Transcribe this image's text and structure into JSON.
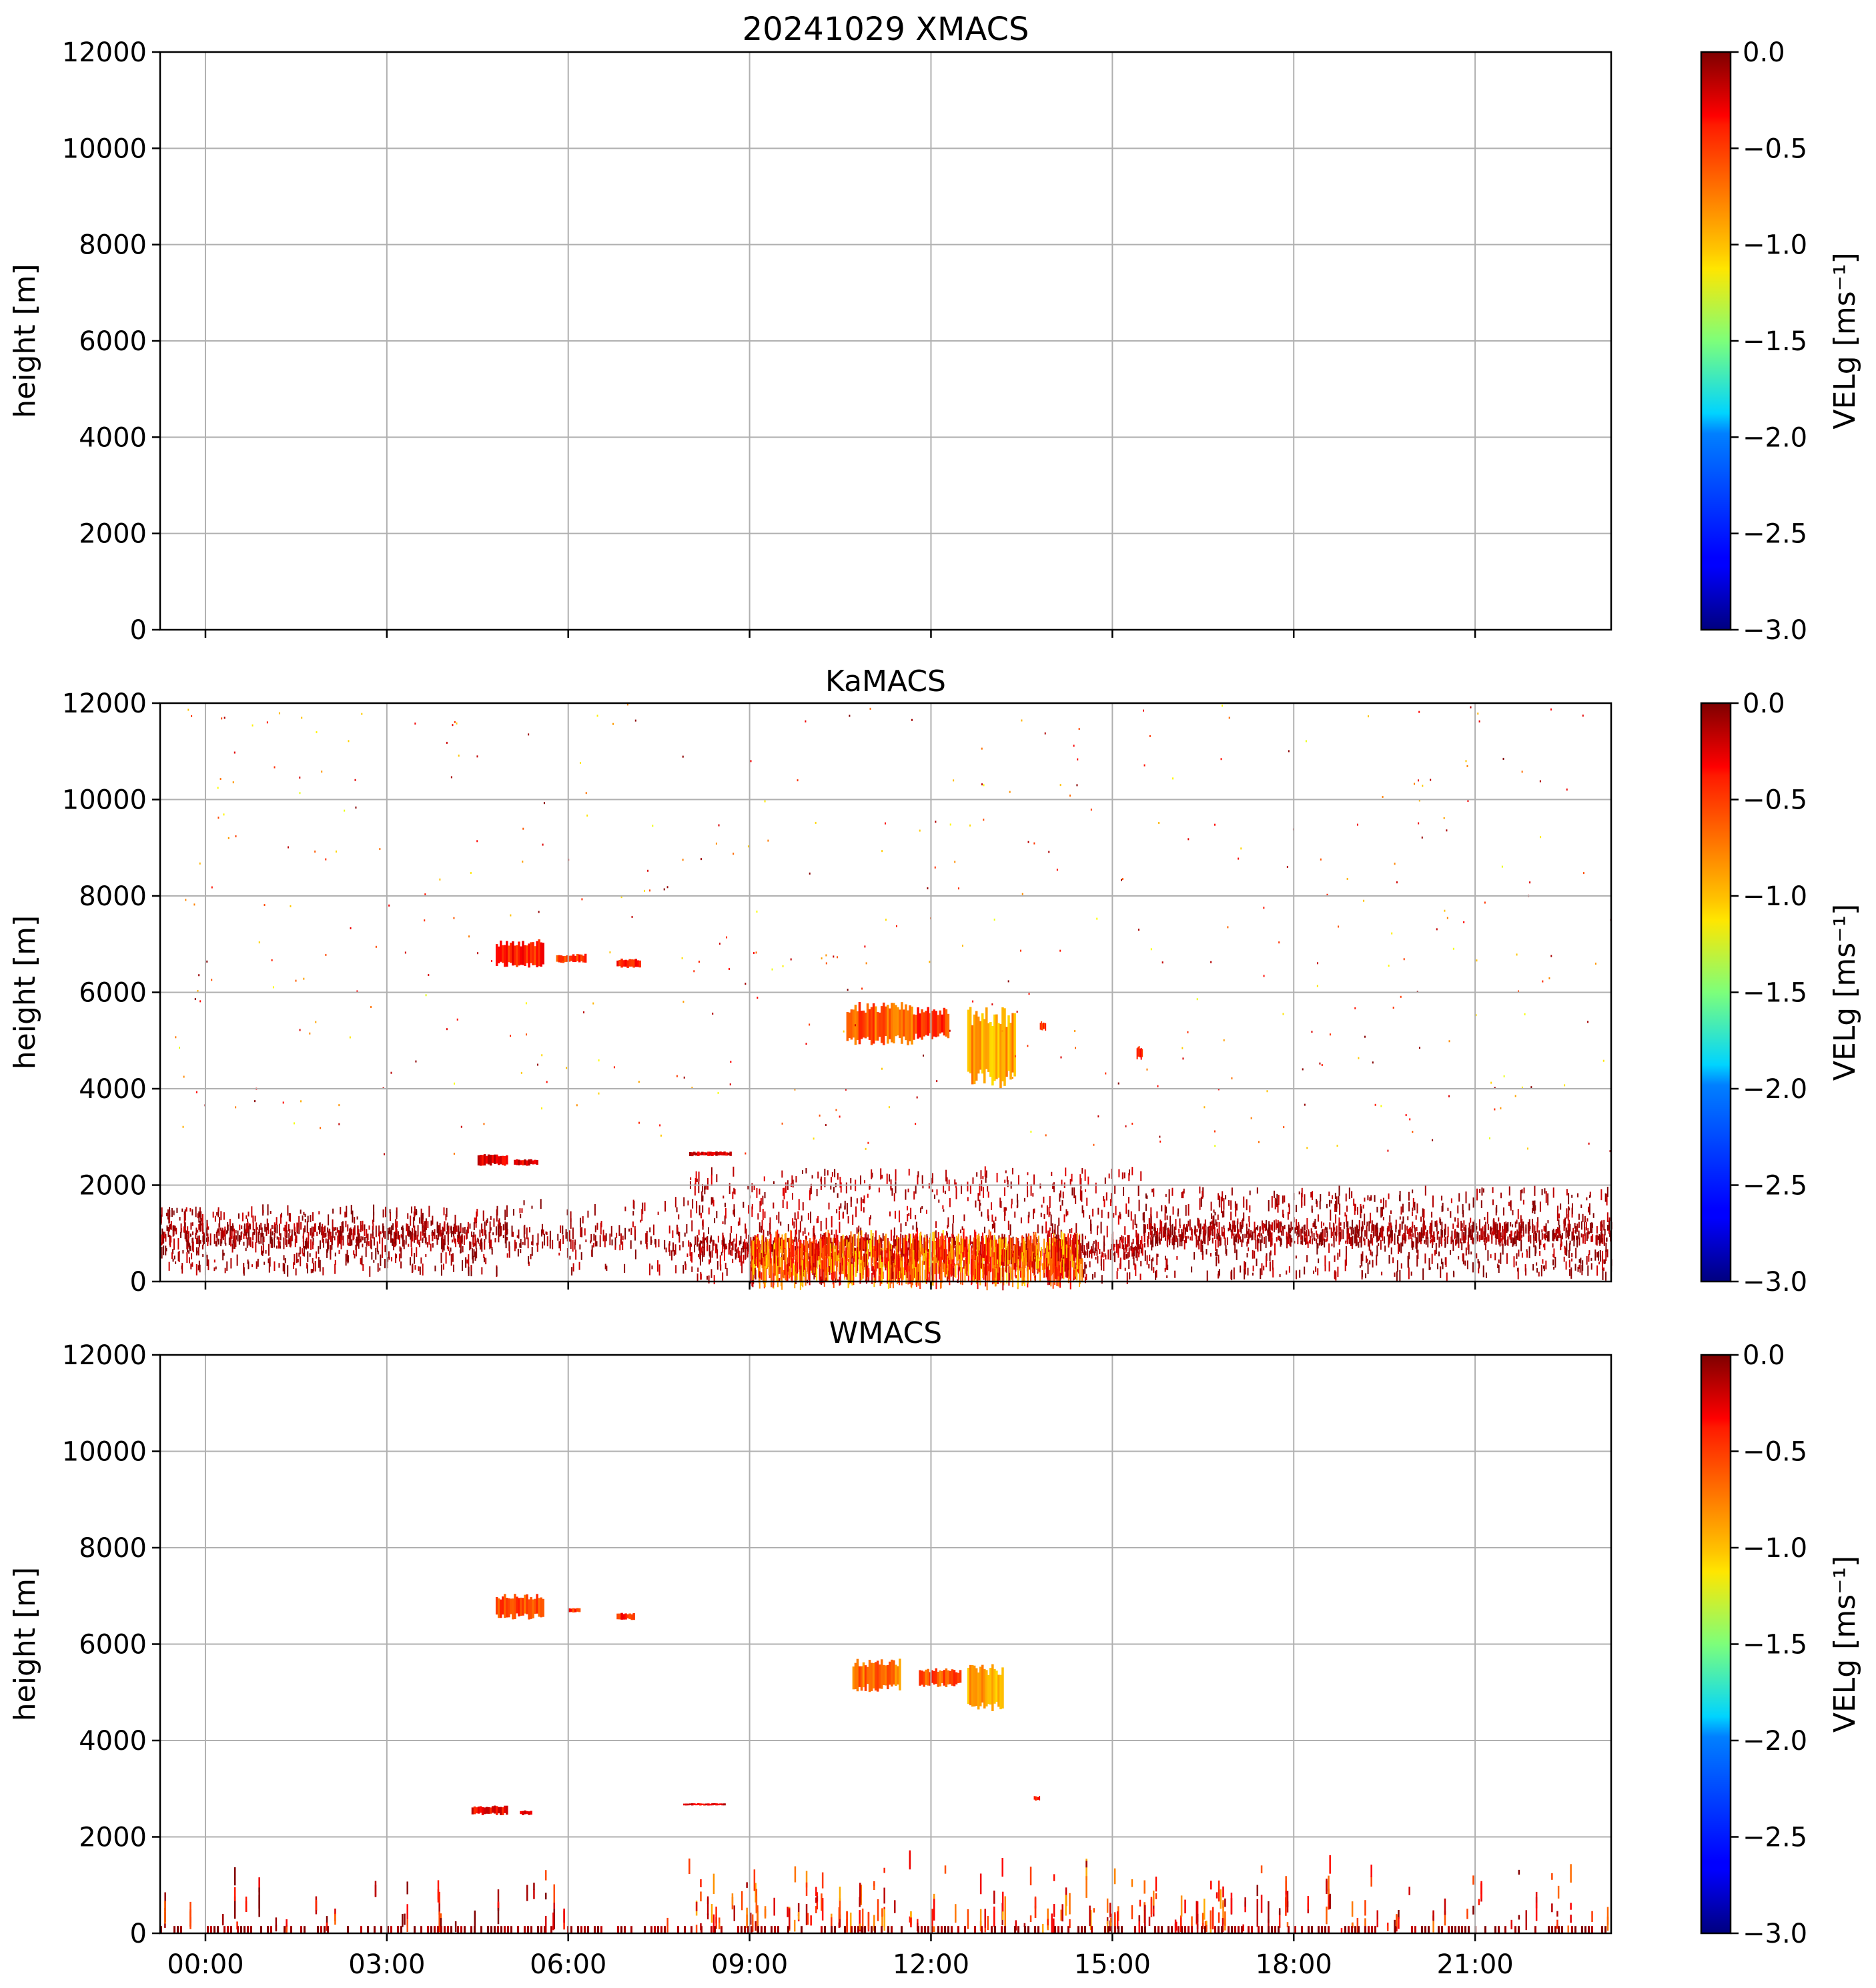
{
  "chart_data": [
    {
      "type": "heatmap",
      "title": "20241029 XMACS",
      "ylabel": "height [m]",
      "ylim": [
        0,
        12000
      ],
      "yticks": [
        "0",
        "2000",
        "4000",
        "6000",
        "8000",
        "10000",
        "12000"
      ],
      "xlim": [
        -0.75,
        23.25
      ],
      "xticks": [
        "00:00",
        "03:00",
        "06:00",
        "09:00",
        "12:00",
        "15:00",
        "18:00",
        "21:00"
      ],
      "show_xtick_labels": false,
      "grid": true,
      "colorbar": {
        "label": "VELg [ms⁻¹]",
        "range": [
          -3.0,
          0.0
        ],
        "ticks": [
          "0.0",
          "−0.5",
          "−1.0",
          "−1.5",
          "−2.0",
          "−2.5",
          "−3.0"
        ],
        "colormap": "jet"
      },
      "features": []
    },
    {
      "type": "heatmap",
      "title": "KaMACS",
      "ylabel": "height [m]",
      "ylim": [
        0,
        12000
      ],
      "yticks": [
        "0",
        "2000",
        "4000",
        "6000",
        "8000",
        "10000",
        "12000"
      ],
      "xlim": [
        -0.75,
        23.25
      ],
      "xticks": [
        "00:00",
        "03:00",
        "06:00",
        "09:00",
        "12:00",
        "15:00",
        "18:00",
        "21:00"
      ],
      "show_xtick_labels": false,
      "grid": true,
      "colorbar": {
        "label": "VELg [ms⁻¹]",
        "range": [
          -3.0,
          0.0
        ],
        "ticks": [
          "0.0",
          "−0.5",
          "−1.0",
          "−1.5",
          "−2.0",
          "−2.5",
          "−3.0"
        ],
        "colormap": "jet"
      },
      "features": [
        {
          "kind": "blob",
          "t0": 4.8,
          "t1": 5.6,
          "h0": 6500,
          "h1": 7100,
          "vel": -0.45
        },
        {
          "kind": "blob",
          "t0": 5.8,
          "t1": 6.3,
          "h0": 6600,
          "h1": 6800,
          "vel": -0.5
        },
        {
          "kind": "blob",
          "t0": 6.8,
          "t1": 7.2,
          "h0": 6500,
          "h1": 6700,
          "vel": -0.5
        },
        {
          "kind": "blob",
          "t0": 4.5,
          "t1": 5.0,
          "h0": 2400,
          "h1": 2650,
          "vel": -0.3
        },
        {
          "kind": "blob",
          "t0": 5.1,
          "t1": 5.5,
          "h0": 2400,
          "h1": 2550,
          "vel": -0.3
        },
        {
          "kind": "blob",
          "t0": 8.0,
          "t1": 8.7,
          "h0": 2600,
          "h1": 2700,
          "vel": -0.25
        },
        {
          "kind": "blob",
          "t0": 10.6,
          "t1": 11.7,
          "h0": 4900,
          "h1": 5800,
          "vel": -0.65
        },
        {
          "kind": "blob",
          "t0": 11.7,
          "t1": 12.3,
          "h0": 5000,
          "h1": 5700,
          "vel": -0.55
        },
        {
          "kind": "blob",
          "t0": 12.6,
          "t1": 13.4,
          "h0": 4000,
          "h1": 5700,
          "vel": -0.85
        },
        {
          "kind": "blob",
          "t0": 13.8,
          "t1": 13.9,
          "h0": 5200,
          "h1": 5400,
          "vel": -0.5
        },
        {
          "kind": "blob",
          "t0": 15.4,
          "t1": 15.5,
          "h0": 4600,
          "h1": 4900,
          "vel": -0.5
        },
        {
          "kind": "band",
          "t0": -0.75,
          "t1": 5.0,
          "h0": 200,
          "h1": 1500,
          "center": 950,
          "density": 0.8,
          "vel": -0.1
        },
        {
          "kind": "band",
          "t0": 5.0,
          "t1": 8.0,
          "h0": 200,
          "h1": 1700,
          "center": 900,
          "density": 0.3,
          "vel": -0.1
        },
        {
          "kind": "band",
          "t0": 8.0,
          "t1": 15.5,
          "h0": 0,
          "h1": 2300,
          "center": 700,
          "density": 0.9,
          "vel": -0.15
        },
        {
          "kind": "band",
          "t0": 15.5,
          "t1": 23.25,
          "h0": 100,
          "h1": 1900,
          "center": 1000,
          "density": 0.9,
          "vel": -0.1
        },
        {
          "kind": "core",
          "t0": 9.0,
          "t1": 14.5,
          "h0": 100,
          "h1": 800,
          "vel": -0.6
        },
        {
          "kind": "speckle",
          "t0": -0.75,
          "t1": 23.25,
          "h0": 2500,
          "h1": 12000,
          "count": 420
        }
      ]
    },
    {
      "type": "heatmap",
      "title": "WMACS",
      "ylabel": "height [m]",
      "ylim": [
        0,
        12000
      ],
      "yticks": [
        "0",
        "2000",
        "4000",
        "6000",
        "8000",
        "10000",
        "12000"
      ],
      "xlim": [
        -0.75,
        23.25
      ],
      "xticks": [
        "00:00",
        "03:00",
        "06:00",
        "09:00",
        "12:00",
        "15:00",
        "18:00",
        "21:00"
      ],
      "show_xtick_labels": true,
      "grid": true,
      "colorbar": {
        "label": "VELg [ms⁻¹]",
        "range": [
          -3.0,
          0.0
        ],
        "ticks": [
          "0.0",
          "−0.5",
          "−1.0",
          "−1.5",
          "−2.0",
          "−2.5",
          "−3.0"
        ],
        "colormap": "jet"
      },
      "features": [
        {
          "kind": "blob",
          "t0": 4.8,
          "t1": 5.6,
          "h0": 6500,
          "h1": 7050,
          "vel": -0.6
        },
        {
          "kind": "blob",
          "t0": 6.0,
          "t1": 6.2,
          "h0": 6650,
          "h1": 6750,
          "vel": -0.5
        },
        {
          "kind": "blob",
          "t0": 6.8,
          "t1": 7.1,
          "h0": 6500,
          "h1": 6650,
          "vel": -0.5
        },
        {
          "kind": "blob",
          "t0": 4.4,
          "t1": 5.0,
          "h0": 2450,
          "h1": 2650,
          "vel": -0.35
        },
        {
          "kind": "blob",
          "t0": 5.2,
          "t1": 5.4,
          "h0": 2450,
          "h1": 2550,
          "vel": -0.35
        },
        {
          "kind": "blob",
          "t0": 7.9,
          "t1": 8.6,
          "h0": 2650,
          "h1": 2700,
          "vel": -0.3
        },
        {
          "kind": "blob",
          "t0": 10.7,
          "t1": 11.5,
          "h0": 5000,
          "h1": 5700,
          "vel": -0.7
        },
        {
          "kind": "blob",
          "t0": 11.8,
          "t1": 12.5,
          "h0": 5100,
          "h1": 5500,
          "vel": -0.6
        },
        {
          "kind": "blob",
          "t0": 12.6,
          "t1": 13.2,
          "h0": 4600,
          "h1": 5600,
          "vel": -0.9
        },
        {
          "kind": "blob",
          "t0": 13.7,
          "t1": 13.8,
          "h0": 2750,
          "h1": 2850,
          "vel": -0.4
        },
        {
          "kind": "columns",
          "t0": -0.75,
          "t1": 8.0,
          "h0": 0,
          "h1": 1300,
          "density": 0.25,
          "vel": -0.3
        },
        {
          "kind": "columns",
          "t0": 8.0,
          "t1": 17.0,
          "h0": 0,
          "h1": 1500,
          "density": 0.9,
          "vel": -0.5
        },
        {
          "kind": "columns",
          "t0": 17.0,
          "t1": 23.25,
          "h0": 0,
          "h1": 1400,
          "density": 0.45,
          "vel": -0.35
        },
        {
          "kind": "ground",
          "t0": -0.75,
          "t1": 23.25,
          "h0": 0,
          "h1": 150,
          "vel": -0.05
        }
      ]
    }
  ]
}
